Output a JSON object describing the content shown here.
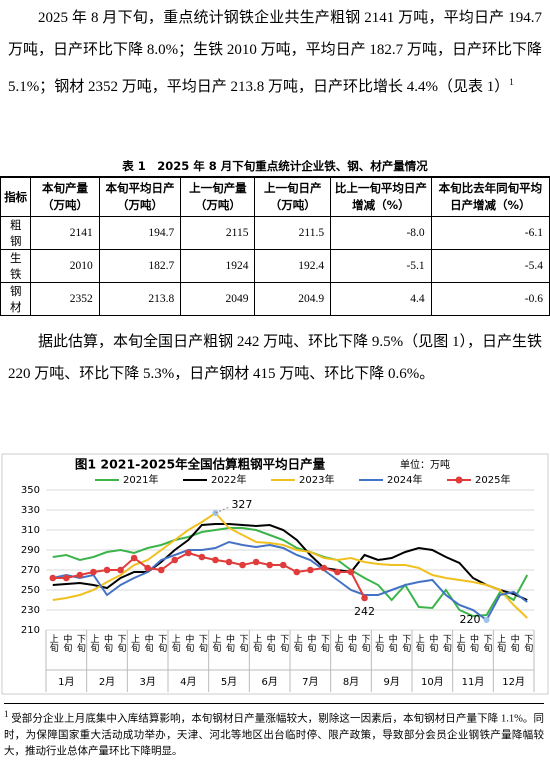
{
  "paragraph1": {
    "text": "2025 年 8 月下旬，重点统计钢铁企业共生产粗钢 2141 万吨，平均日产 194.7 万吨，日产环比下降 8.0%；生铁 2010 万吨，平均日产 182.7 万吨，日产环比下降 5.1%；钢材 2352 万吨，平均日产 213.8 万吨，日产环比增长 4.4%（见表 1）",
    "note_mark": "1"
  },
  "table": {
    "caption": "表 1　2025 年 8 月下旬重点统计企业铁、钢、材产量情况",
    "header": [
      "指标",
      "本旬产量（万吨）",
      "本旬平均日产（万吨）",
      "上一旬产量（万吨）",
      "上一旬日产（万吨）",
      "比上一旬平均日产增减（%）",
      "本旬比去年同旬平均日产增减（%）"
    ],
    "rows": [
      [
        "粗钢",
        "2141",
        "194.7",
        "2115",
        "211.5",
        "-8.0",
        "-6.1"
      ],
      [
        "生铁",
        "2010",
        "182.7",
        "1924",
        "192.4",
        "-5.1",
        "-5.4"
      ],
      [
        "钢材",
        "2352",
        "213.8",
        "2049",
        "204.9",
        "4.4",
        "-0.6"
      ]
    ]
  },
  "paragraph2": {
    "text": "据此估算，本旬全国日产粗钢 242 万吨、环比下降 9.5%（见图 1），日产生铁 220 万吨、环比下降 5.3%，日产钢材 415 万吨、环比下降 0.6%。"
  },
  "chart_data": {
    "type": "line",
    "title": "图1  2021-2025年全国估算粗钢平均日产量",
    "unit": "单位：万吨",
    "categories": [
      "上旬",
      "中旬",
      "下旬",
      "上旬",
      "中旬",
      "下旬",
      "上旬",
      "中旬",
      "下旬",
      "上旬",
      "中旬",
      "下旬",
      "上旬",
      "中旬",
      "下旬",
      "上旬",
      "中旬",
      "下旬",
      "上旬",
      "中旬",
      "下旬",
      "上旬",
      "中旬",
      "下旬",
      "上旬",
      "中旬",
      "下旬",
      "上旬",
      "中旬",
      "下旬",
      "上旬",
      "中旬",
      "下旬",
      "上旬",
      "中旬",
      "下旬"
    ],
    "months": [
      "1月",
      "2月",
      "3月",
      "4月",
      "5月",
      "6月",
      "7月",
      "8月",
      "9月",
      "10月",
      "11月",
      "12月"
    ],
    "ylim": [
      210,
      350
    ],
    "yticks": [
      210,
      230,
      250,
      270,
      290,
      310,
      330,
      350
    ],
    "grid": true,
    "series": [
      {
        "name": "2021年",
        "color": "#3cb44b",
        "values": [
          283,
          285,
          280,
          283,
          288,
          290,
          287,
          292,
          295,
          300,
          303,
          308,
          310,
          312,
          312,
          310,
          305,
          300,
          292,
          288,
          283,
          280,
          270,
          262,
          255,
          240,
          255,
          233,
          232,
          250,
          230,
          224,
          225,
          248,
          240,
          265
        ]
      },
      {
        "name": "2022年",
        "color": "#000000",
        "values": [
          255,
          256,
          257,
          255,
          252,
          262,
          268,
          268,
          278,
          290,
          300,
          315,
          316,
          316,
          315,
          314,
          315,
          310,
          300,
          285,
          272,
          270,
          268,
          285,
          280,
          282,
          288,
          292,
          290,
          283,
          277,
          262,
          255,
          250,
          246,
          240
        ]
      },
      {
        "name": "2023年",
        "color": "#f0c020",
        "values": [
          240,
          242,
          245,
          250,
          258,
          265,
          275,
          280,
          290,
          300,
          310,
          318,
          327,
          312,
          305,
          298,
          297,
          295,
          290,
          288,
          282,
          280,
          282,
          278,
          276,
          275,
          275,
          272,
          265,
          262,
          260,
          258,
          255,
          250,
          235,
          222
        ]
      },
      {
        "name": "2024年",
        "color": "#4472c4",
        "values": [
          262,
          265,
          262,
          265,
          245,
          255,
          262,
          268,
          280,
          285,
          290,
          290,
          292,
          298,
          295,
          293,
          295,
          292,
          285,
          280,
          270,
          260,
          250,
          245,
          245,
          250,
          255,
          258,
          260,
          245,
          235,
          230,
          220,
          245,
          248,
          238
        ]
      },
      {
        "name": "2025年",
        "color": "#e03c3c",
        "values": [
          262,
          262,
          265,
          268,
          270,
          270,
          282,
          272,
          270,
          280,
          287,
          283,
          280,
          278,
          275,
          278,
          275,
          275,
          268,
          270,
          272,
          268,
          268,
          242,
          null,
          null,
          null,
          null,
          null,
          null,
          null,
          null,
          null,
          null,
          null,
          null
        ]
      }
    ]
  },
  "footnote": {
    "mark": "1",
    "text": "受部分企业上月底集中入库结算影响，本旬钢材日产量涨幅较大，剔除这一因素后，本旬钢材日产量下降 1.1%。同时，为保障国家重大活动成功举办，天津、河北等地区出台临时停、限产政策，导致部分会员企业钢铁产量降幅较大，推动行业总体产量环比下降明显。"
  }
}
